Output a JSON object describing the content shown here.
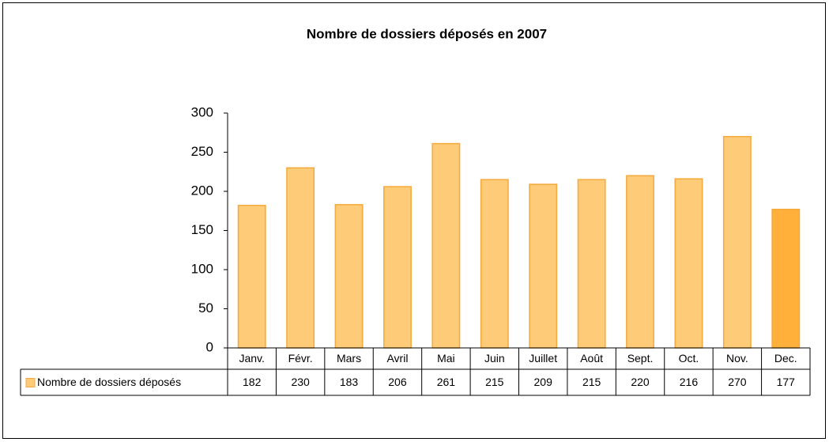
{
  "chart_data": {
    "type": "bar",
    "title": "Nombre de dossiers déposés en 2007",
    "categories": [
      "Janv.",
      "Févr.",
      "Mars",
      "Avril",
      "Mai",
      "Juin",
      "Juillet",
      "Août",
      "Sept.",
      "Oct.",
      "Nov.",
      "Dec."
    ],
    "series": [
      {
        "name": "Nombre de dossiers déposés",
        "color": "#fecb79",
        "values": [
          182,
          230,
          183,
          206,
          261,
          215,
          209,
          215,
          220,
          216,
          270,
          177
        ],
        "colors": [
          "#fecb79",
          "#fecb79",
          "#fecb79",
          "#fecb79",
          "#fecb79",
          "#fecb79",
          "#fecb79",
          "#fecb79",
          "#fecb79",
          "#fecb79",
          "#fecb79",
          "#ffb03a"
        ]
      }
    ],
    "ylim": [
      0,
      300
    ],
    "yticks": [
      0,
      50,
      100,
      150,
      200,
      250,
      300
    ],
    "grid": false,
    "data_table": true
  }
}
